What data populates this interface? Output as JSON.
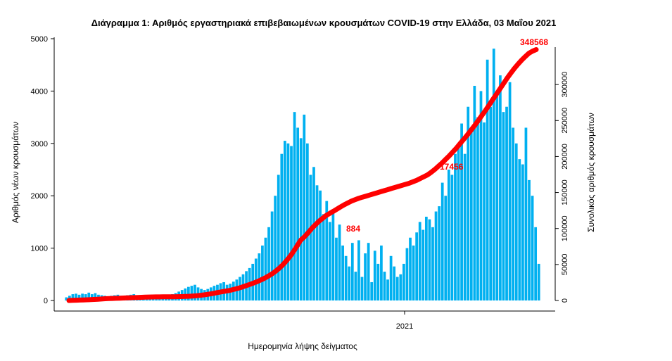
{
  "chart_data": {
    "type": "bar",
    "title": "Διάγραμμα 1: Αριθμός εργαστηριακά επιβεβαιωμένων κρουσμάτων COVID-19 στην Ελλάδα, 03 Μαΐου 2021",
    "xlabel": "Ημερομηνία λήψης δείγματος",
    "ylabel": "Αριθμός νέων κρουσμάτων",
    "y2label": "Συνολικός αριθμός κρουσμάτων",
    "x_tick": "2021",
    "ylim": [
      0,
      5000
    ],
    "y2lim": [
      0,
      400000
    ],
    "yticks": [
      0,
      1000,
      2000,
      3000,
      4000,
      5000
    ],
    "y2ticks": [
      0,
      50000,
      100000,
      150000,
      200000,
      250000,
      300000
    ],
    "annotations": [
      "348568",
      "17456",
      "884"
    ],
    "colors": {
      "bars": "#00b0f0",
      "cumulative": "#ff0000"
    },
    "series": [
      {
        "values": [
          60,
          90,
          120,
          130,
          110,
          130,
          120,
          150,
          120,
          140,
          110,
          100,
          90,
          80,
          90,
          100,
          110,
          90,
          80,
          100,
          110,
          120,
          80,
          60,
          40,
          30,
          40,
          50,
          40,
          40,
          60,
          80,
          100,
          120,
          140,
          170,
          200,
          230,
          260,
          280,
          300,
          250,
          220,
          200,
          220,
          250,
          280,
          300,
          330,
          350,
          300,
          320,
          360,
          400,
          450,
          500,
          560,
          620,
          700,
          800,
          900,
          1050,
          1200,
          1400,
          1700,
          2000,
          2400,
          2800,
          3050,
          3000,
          2950,
          3600,
          3300,
          3100,
          3550,
          3000,
          2400,
          2550,
          2200,
          2100,
          1650,
          1900,
          1500,
          1700,
          1200,
          1450,
          1050,
          850,
          650,
          1100,
          550,
          1150,
          450,
          900,
          1100,
          350,
          950,
          700,
          1050,
          550,
          400,
          850,
          650,
          450,
          500,
          700,
          1000,
          1200,
          1050,
          1300,
          1500,
          1350,
          1600,
          1550,
          1400,
          1700,
          1800,
          2250,
          2000,
          2500,
          2400,
          2800,
          3000,
          3380,
          2800,
          3700,
          3300,
          4100,
          3500,
          4000,
          3400,
          4600,
          3700,
          4810,
          3900,
          4300,
          3600,
          3700,
          4170,
          3300,
          3000,
          2700,
          2600,
          3300,
          2300,
          2000,
          1400,
          700
        ]
      },
      {
        "values": [
          0,
          200,
          400,
          600,
          800,
          1000,
          1200,
          1500,
          1800,
          2100,
          2400,
          2600,
          2800,
          3000,
          3200,
          3400,
          3600,
          3800,
          4000,
          4200,
          4400,
          4600,
          4800,
          4900,
          5000,
          5000,
          5100,
          5100,
          5200,
          5200,
          5300,
          5400,
          5600,
          5800,
          6100,
          6500,
          7000,
          7600,
          8300,
          9100,
          10000,
          11000,
          11900,
          12800,
          13700,
          14800,
          16000,
          17400,
          19000,
          20700,
          22500,
          24300,
          26300,
          28500,
          31000,
          33700,
          36800,
          40400,
          44600,
          49400,
          54800,
          61000,
          68000,
          76000,
          84000,
          88400,
          94000,
          100000,
          105000,
          110000,
          114000,
          118000,
          121000,
          124000,
          127000,
          130000,
          133000,
          135500,
          138000,
          140000,
          142000,
          143500,
          145000,
          146500,
          148000,
          149500,
          151000,
          152500,
          154000,
          155500,
          157000,
          158500,
          160000,
          161500,
          163000,
          165000,
          167000,
          169500,
          172000,
          174560,
          178000,
          182000,
          186500,
          191000,
          196000,
          201000,
          206500,
          212000,
          218000,
          224000,
          230000,
          236500,
          243000,
          250000,
          257000,
          264000,
          271500,
          279000,
          286500,
          294000,
          301500,
          309000,
          316000,
          322500,
          328500,
          334000,
          339000,
          343500,
          346500,
          348568
        ]
      }
    ]
  }
}
